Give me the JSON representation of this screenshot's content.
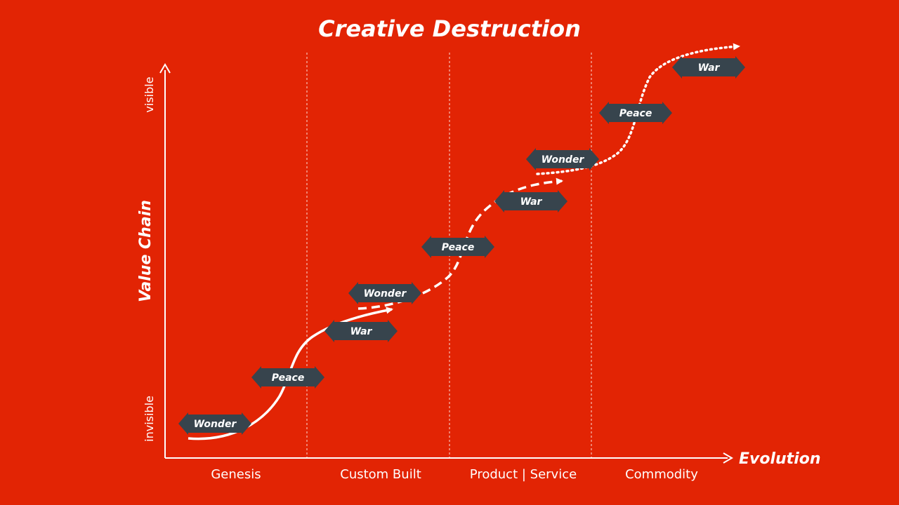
{
  "title": "Creative Destruction",
  "axes": {
    "y_label": "Value Chain",
    "y_top": "visible",
    "y_bottom": "invisible",
    "x_label": "Evolution"
  },
  "stages": [
    "Genesis",
    "Custom Built",
    "Product | Service",
    "Commodity"
  ],
  "colors": {
    "background": "#e22404",
    "badge": "#37444d",
    "line": "#ffffff"
  },
  "cycles": [
    {
      "style": "solid",
      "badges": [
        {
          "name": "badge-cycle1-wonder",
          "label": "Wonder"
        },
        {
          "name": "badge-cycle1-peace",
          "label": "Peace"
        },
        {
          "name": "badge-cycle1-war",
          "label": "War"
        }
      ]
    },
    {
      "style": "dashed",
      "badges": [
        {
          "name": "badge-cycle2-wonder",
          "label": "Wonder"
        },
        {
          "name": "badge-cycle2-peace",
          "label": "Peace"
        },
        {
          "name": "badge-cycle2-war",
          "label": "War"
        }
      ]
    },
    {
      "style": "dotted",
      "badges": [
        {
          "name": "badge-cycle3-wonder",
          "label": "Wonder"
        },
        {
          "name": "badge-cycle3-peace",
          "label": "Peace"
        },
        {
          "name": "badge-cycle3-war",
          "label": "War"
        }
      ]
    }
  ]
}
